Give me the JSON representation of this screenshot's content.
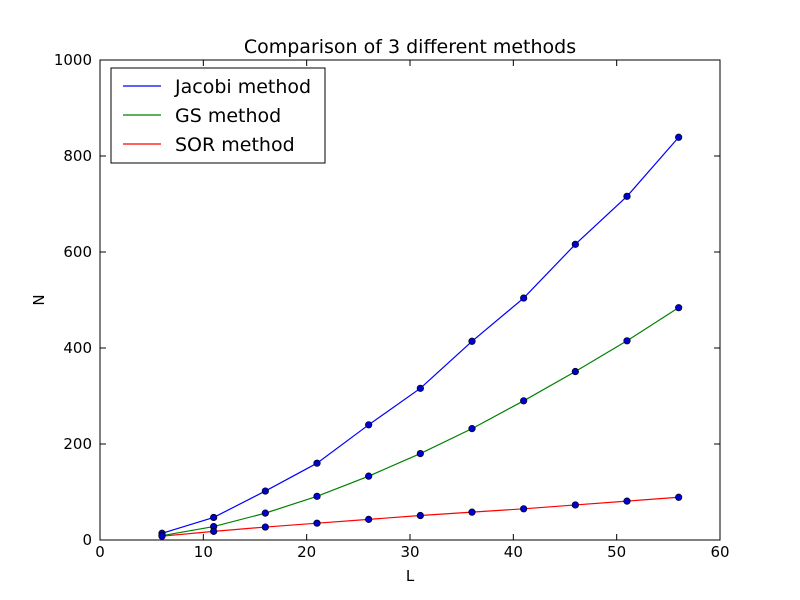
{
  "chart_data": {
    "type": "line",
    "title": "Comparison of 3 different methods",
    "xlabel": "L",
    "ylabel": "N",
    "xlim": [
      0,
      60
    ],
    "ylim": [
      0,
      1000
    ],
    "xticks": [
      0,
      10,
      20,
      30,
      40,
      50,
      60
    ],
    "yticks": [
      0,
      200,
      400,
      600,
      800,
      1000
    ],
    "legend_position": "top-left",
    "grid": false,
    "x": [
      6,
      11,
      16,
      21,
      26,
      31,
      36,
      41,
      46,
      51,
      56
    ],
    "series": [
      {
        "name": "Jacobi method",
        "color": "#0000ff",
        "values": [
          14,
          47,
          102,
          160,
          240,
          316,
          414,
          504,
          616,
          716,
          839
        ]
      },
      {
        "name": "GS method",
        "color": "#008000",
        "values": [
          9,
          28,
          56,
          91,
          133,
          180,
          232,
          290,
          351,
          415,
          484
        ]
      },
      {
        "name": "SOR  method",
        "color": "#ff0000",
        "values": [
          8,
          18,
          27,
          35,
          43,
          51,
          58,
          65,
          73,
          81,
          89
        ]
      }
    ],
    "marker_color": "#0000cc"
  }
}
